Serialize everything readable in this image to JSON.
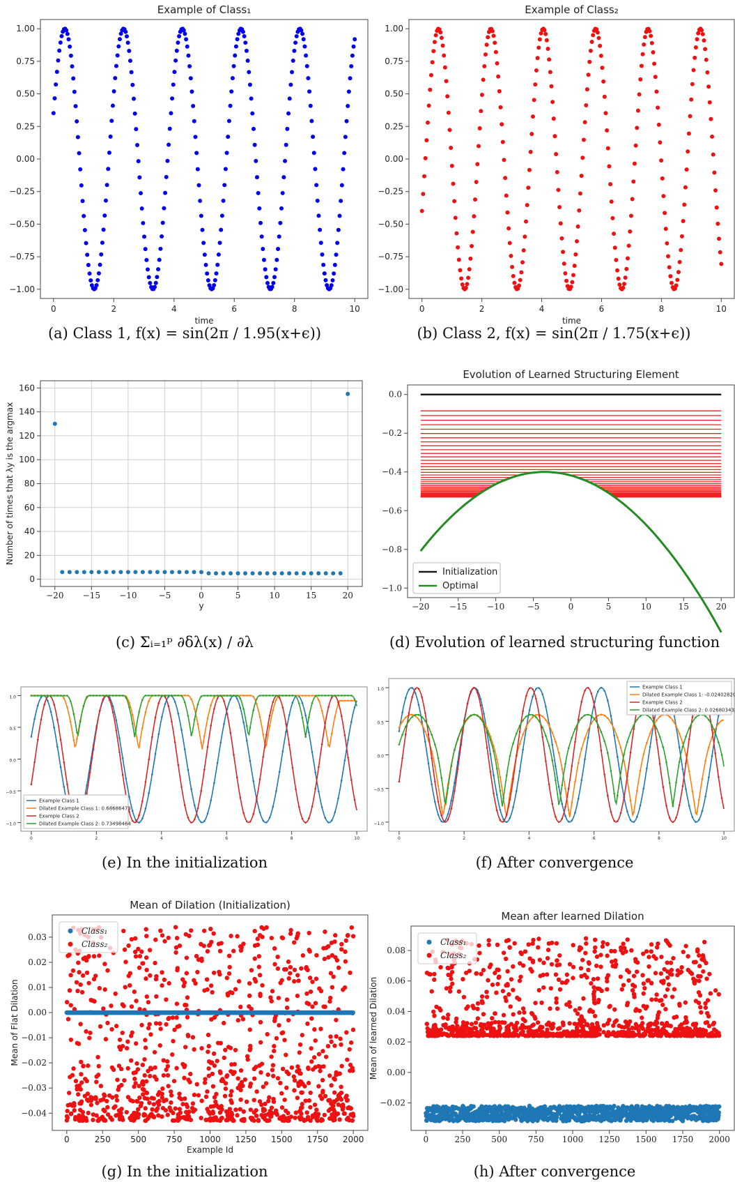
{
  "captions": {
    "a": "(a) Class 1, f(x) = sin(2π / 1.95(x+ϵ))",
    "b": "(b) Class 2, f(x) = sin(2π / 1.75(x+ϵ))",
    "c": "(c) Σᵢ₌₁ᵖ ∂δλ(x) / ∂λ",
    "d": "(d) Evolution of learned structuring function",
    "e": "(e) In the initialization",
    "f": "(f) After convergence",
    "g": "(g) In the initialization",
    "h": "(h) After convergence"
  },
  "chart_data": [
    {
      "id": "a",
      "type": "scatter",
      "title": "Example of Class₁",
      "xlabel": "time",
      "ylabel": "",
      "xlim": [
        0,
        10
      ],
      "ylim": [
        -1,
        1
      ],
      "xticks": [
        "0",
        "2",
        "4",
        "6",
        "8",
        "10"
      ],
      "yticks": [
        "1.00",
        "0.75",
        "0.50",
        "0.25",
        "0.00",
        "−0.25",
        "−0.50",
        "−0.75",
        "−1.00"
      ],
      "series": [
        {
          "function": "sin(2*pi*x/1.95 + 0.36)",
          "x_from": 0,
          "x_to": 10,
          "points": 260,
          "color": "#0000ee"
        }
      ]
    },
    {
      "id": "b",
      "type": "scatter",
      "title": "Example of Class₂",
      "xlabel": "time",
      "ylabel": "",
      "xlim": [
        0,
        10
      ],
      "ylim": [
        -1,
        1
      ],
      "xticks": [
        "0",
        "2",
        "4",
        "6",
        "8",
        "10"
      ],
      "yticks": [
        "1.00",
        "0.75",
        "0.50",
        "0.25",
        "0.00",
        "−0.25",
        "−0.50",
        "−0.75",
        "−1.00"
      ],
      "series": [
        {
          "function": "sin(2*pi*x/1.75 - 0.41)",
          "x_from": 0,
          "x_to": 10,
          "points": 260,
          "color": "#ee1111"
        }
      ]
    },
    {
      "id": "c",
      "type": "scatter",
      "title": "",
      "xlabel": "y",
      "ylabel": "Number of times that λy is the argmax",
      "xlim": [
        -20,
        20
      ],
      "ylim": [
        0,
        160
      ],
      "xticks": [
        "−20",
        "−15",
        "−10",
        "−5",
        "0",
        "5",
        "10",
        "15",
        "20"
      ],
      "yticks": [
        "160",
        "140",
        "120",
        "100",
        "80",
        "60",
        "40",
        "20",
        "0"
      ],
      "x": [
        -20,
        -19,
        -18,
        -17,
        -16,
        -15,
        -14,
        -13,
        -12,
        -11,
        -10,
        -9,
        -8,
        -7,
        -6,
        -5,
        -4,
        -3,
        -2,
        -1,
        0,
        1,
        2,
        3,
        4,
        5,
        6,
        7,
        8,
        9,
        10,
        11,
        12,
        13,
        14,
        15,
        16,
        17,
        18,
        19,
        20
      ],
      "values": [
        130,
        6,
        6,
        6,
        6,
        6,
        6,
        6,
        6,
        6,
        6,
        6,
        6,
        6,
        6,
        6,
        6,
        6,
        6,
        6,
        6,
        5,
        5,
        5,
        5,
        5,
        5,
        5,
        5,
        5,
        5,
        5,
        5,
        5,
        5,
        5,
        5,
        5,
        5,
        5,
        155
      ],
      "grid": true
    },
    {
      "id": "d",
      "type": "line",
      "title": "Evolution of Learned Structuring Element",
      "xlabel": "",
      "ylabel": "",
      "xlim": [
        -20,
        20
      ],
      "ylim": [
        -1.0,
        0.0
      ],
      "xticks": [
        "−20",
        "−15",
        "−10",
        "−5",
        "0",
        "5",
        "10",
        "15",
        "20"
      ],
      "yticks": [
        "0.0",
        "−0.2",
        "−0.4",
        "−0.6",
        "−0.8",
        "−1.0"
      ],
      "legend": [
        {
          "name": "Initialization",
          "color": "#1a1a1a"
        },
        {
          "name": "Optimal",
          "color": "#228b22"
        }
      ],
      "legend_position": "bottom-left",
      "iterations": 40,
      "optimal": "-0.4 - 0.0015*(x+3.5)^2"
    },
    {
      "id": "e",
      "type": "line",
      "title": "",
      "xlim": [
        0,
        10
      ],
      "ylim": [
        -1,
        1
      ],
      "xticks": [
        "0",
        "2",
        "4",
        "6",
        "8",
        "10"
      ],
      "yticks": [
        "1.0",
        "0.5",
        "0.0",
        "−0.5",
        "−1.0"
      ],
      "legend_position": "bottom-left",
      "series": [
        {
          "name": "Example Class 1",
          "color": "#1f77b4"
        },
        {
          "name": "Dilated Example Class 1: 0.68686473",
          "color": "#ff7f0e"
        },
        {
          "name": "Example Class 2",
          "color": "#d62728"
        },
        {
          "name": "Dilated Example Class 2: 0.73498464",
          "color": "#2ca02c"
        }
      ]
    },
    {
      "id": "f",
      "type": "line",
      "title": "",
      "xlim": [
        0,
        10
      ],
      "ylim": [
        -1,
        1
      ],
      "xticks": [
        "0",
        "2",
        "4",
        "6",
        "8",
        "10"
      ],
      "yticks": [
        "1.0",
        "0.5",
        "0.0",
        "−0.5",
        "−1.0"
      ],
      "legend_position": "top-right",
      "series": [
        {
          "name": "Example Class 1",
          "color": "#1f77b4"
        },
        {
          "name": "Dilated Example Class 1: -0.024028206",
          "color": "#ff7f0e"
        },
        {
          "name": "Example Class 2",
          "color": "#d62728"
        },
        {
          "name": "Dilated Example Class 2: 0.026803432",
          "color": "#2ca02c"
        }
      ]
    },
    {
      "id": "g",
      "type": "scatter",
      "title": "Mean of Dilation (Initialization)",
      "xlabel": "Example Id",
      "ylabel": "Mean of Flat Dilation",
      "xlim": [
        0,
        2000
      ],
      "ylim": [
        -0.043,
        0.035
      ],
      "xticks": [
        "0",
        "250",
        "500",
        "750",
        "1000",
        "1250",
        "1500",
        "1750",
        "2000"
      ],
      "yticks": [
        "0.03",
        "0.02",
        "0.01",
        "0.00",
        "−0.01",
        "−0.02",
        "−0.03",
        "−0.04"
      ],
      "legend": [
        {
          "name": "Class₁",
          "color": "#1f77b4"
        },
        {
          "name": "Class₂",
          "color": "#ee1111"
        }
      ],
      "legend_position": "top-left",
      "class1_value": 0.0,
      "class2_range": [
        -0.043,
        0.034
      ],
      "count_per_class": 1000
    },
    {
      "id": "h",
      "type": "scatter",
      "title": "Mean after learned Dilation",
      "xlabel": "",
      "ylabel": "Mean of learned Dilation",
      "xlim": [
        0,
        2000
      ],
      "ylim": [
        -0.032,
        0.09
      ],
      "xticks": [
        "0",
        "250",
        "500",
        "750",
        "1000",
        "1250",
        "1500",
        "1750",
        "2000"
      ],
      "yticks": [
        "0.08",
        "0.06",
        "0.04",
        "0.02",
        "0.00",
        "−0.02"
      ],
      "legend": [
        {
          "name": "Class₁",
          "color": "#1f77b4"
        },
        {
          "name": "Class₂",
          "color": "#ee1111"
        }
      ],
      "legend_position": "top-left",
      "class1_range": [
        -0.032,
        -0.022
      ],
      "class2_range": [
        0.024,
        0.088
      ],
      "count_per_class": 1000
    }
  ]
}
